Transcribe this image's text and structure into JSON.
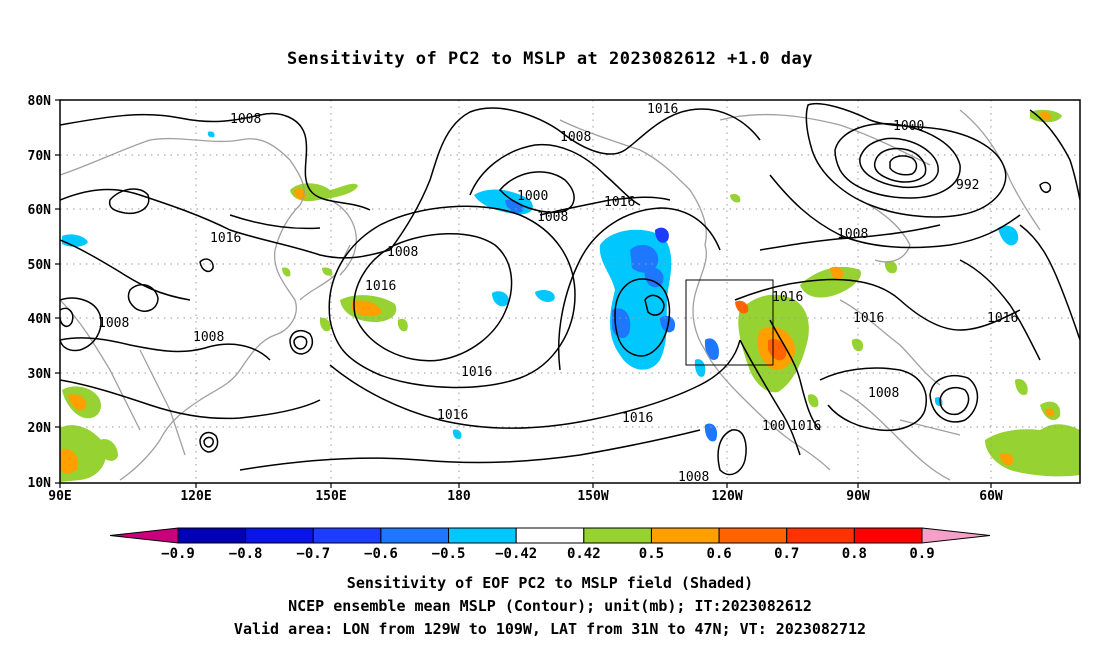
{
  "title": "Sensitivity of PC2 to MSLP at 2023082612 +1.0 day",
  "axes": {
    "lat_ticks": [
      "80N",
      "70N",
      "60N",
      "50N",
      "40N",
      "30N",
      "20N",
      "10N"
    ],
    "lon_ticks": [
      "90E",
      "120E",
      "150E",
      "180",
      "150W",
      "120W",
      "90W",
      "60W"
    ]
  },
  "contour_labels": [
    {
      "text": "1008"
    },
    {
      "text": "1016"
    },
    {
      "text": "1008"
    },
    {
      "text": "1000"
    },
    {
      "text": "1008"
    },
    {
      "text": "1016"
    },
    {
      "text": "1008"
    },
    {
      "text": "1016"
    },
    {
      "text": "1000"
    },
    {
      "text": "992"
    },
    {
      "text": "1008"
    },
    {
      "text": "1016"
    },
    {
      "text": "1016"
    },
    {
      "text": "1016"
    },
    {
      "text": "1008"
    },
    {
      "text": "1008"
    },
    {
      "text": "1016"
    },
    {
      "text": "1016"
    },
    {
      "text": "1016"
    },
    {
      "text": "1016"
    },
    {
      "text": "100"
    },
    {
      "text": "1016"
    },
    {
      "text": "1008"
    },
    {
      "text": "1008"
    }
  ],
  "colorbar": {
    "labels": [
      "-0.9",
      "-0.8",
      "-0.7",
      "-0.6",
      "-0.5",
      "-0.42",
      "0.42",
      "0.5",
      "0.6",
      "0.7",
      "0.8",
      "0.9"
    ],
    "colors": [
      "#c8007c",
      "#0000b4",
      "#0a14e6",
      "#1e3cff",
      "#1e78ff",
      "#00c8ff",
      "#ffffff",
      "#96d232",
      "#ffa000",
      "#ff6400",
      "#ff3200",
      "#ff0000",
      "#f5a0c8"
    ]
  },
  "captions": [
    "Sensitivity of EOF PC2 to MSLP field (Shaded)",
    "NCEP ensemble mean MSLP (Contour); unit(mb); IT:2023082612",
    "Valid area: LON from 129W to 109W, LAT from 31N to 47N; VT: 2023082712"
  ]
}
